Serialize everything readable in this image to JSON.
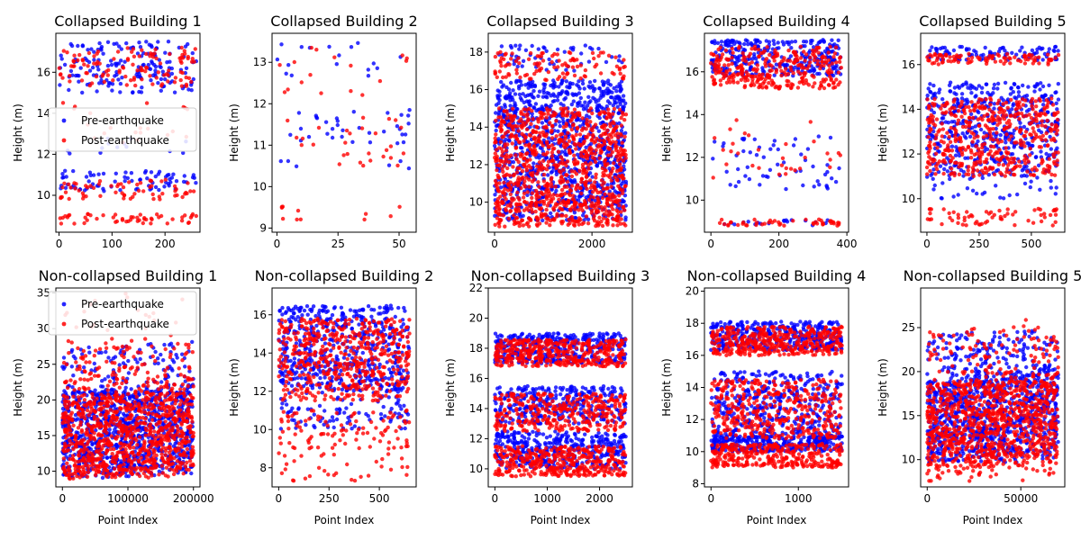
{
  "chart_data": [
    {
      "type": "scatter",
      "title": "Collapsed Building 1",
      "xlabel": "",
      "ylabel": "Height (m)",
      "xlim": [
        -6,
        266
      ],
      "ylim": [
        8.2,
        17.9
      ],
      "xticks": [
        0,
        100,
        200
      ],
      "yticks": [
        10,
        12,
        14,
        16
      ],
      "xtick_labels": [
        "0",
        "100",
        "200"
      ],
      "ytick_labels": [
        "10",
        "12",
        "14",
        "16"
      ],
      "n": 260,
      "legend": {
        "placement": "center-left",
        "entries": [
          "Pre-earthquake",
          "Post-earthquake"
        ]
      },
      "series": [
        {
          "name": "Pre-earthquake",
          "color": "#0000ff",
          "bands": [
            [
              15.6,
              17.5,
              0.45
            ],
            [
              10.2,
              11.2,
              0.3
            ],
            [
              12.0,
              12.8,
              0.05
            ],
            [
              15.0,
              16.0,
              0.2
            ]
          ]
        },
        {
          "name": "Post-earthquake",
          "color": "#ff0000",
          "bands": [
            [
              15.3,
              17.2,
              0.45
            ],
            [
              9.8,
              10.8,
              0.25
            ],
            [
              8.6,
              9.1,
              0.2
            ],
            [
              12.5,
              13.5,
              0.05
            ],
            [
              14.0,
              14.6,
              0.03
            ]
          ]
        }
      ]
    },
    {
      "type": "scatter",
      "title": "Collapsed Building 2",
      "xlabel": "",
      "ylabel": "Height (m)",
      "xlim": [
        -2,
        57
      ],
      "ylim": [
        8.9,
        13.7
      ],
      "xticks": [
        0,
        25,
        50
      ],
      "yticks": [
        9,
        10,
        11,
        12,
        13
      ],
      "xtick_labels": [
        "0",
        "25",
        "50"
      ],
      "ytick_labels": [
        "9",
        "10",
        "11",
        "12",
        "13"
      ],
      "n": 56,
      "legend": null,
      "series": [
        {
          "name": "Pre-earthquake",
          "color": "#0000ff",
          "bands": [
            [
              12.6,
              13.5,
              0.3
            ],
            [
              11.0,
              11.9,
              0.6
            ],
            [
              10.3,
              10.9,
              0.1
            ]
          ]
        },
        {
          "name": "Post-earthquake",
          "color": "#ff0000",
          "bands": [
            [
              12.2,
              13.4,
              0.3
            ],
            [
              10.5,
              11.7,
              0.5
            ],
            [
              9.2,
              9.6,
              0.2
            ]
          ]
        }
      ]
    },
    {
      "type": "scatter",
      "title": "Collapsed Building 3",
      "xlabel": "",
      "ylabel": "Height (m)",
      "xlim": [
        -130,
        2830
      ],
      "ylim": [
        8.4,
        19.0
      ],
      "xticks": [
        0,
        2000
      ],
      "yticks": [
        10,
        12,
        14,
        16,
        18
      ],
      "xtick_labels": [
        "0",
        "2000"
      ],
      "ytick_labels": [
        "10",
        "12",
        "14",
        "16",
        "18"
      ],
      "n": 2700,
      "legend": null,
      "series": [
        {
          "name": "Pre-earthquake",
          "color": "#0000ff",
          "bands": [
            [
              10.0,
              16.5,
              0.85
            ],
            [
              17.0,
              18.4,
              0.05
            ],
            [
              9.0,
              10.0,
              0.1
            ]
          ]
        },
        {
          "name": "Post-earthquake",
          "color": "#ff0000",
          "bands": [
            [
              9.8,
              15.0,
              0.7
            ],
            [
              8.7,
              10.0,
              0.2
            ],
            [
              16.5,
              18.0,
              0.1
            ]
          ]
        }
      ]
    },
    {
      "type": "scatter",
      "title": "Collapsed Building 4",
      "xlabel": "",
      "ylabel": "Height (m)",
      "xlim": [
        -19,
        405
      ],
      "ylim": [
        8.5,
        17.8
      ],
      "xticks": [
        0,
        200,
        400
      ],
      "yticks": [
        10,
        12,
        14,
        16
      ],
      "xtick_labels": [
        "0",
        "200",
        "400"
      ],
      "ytick_labels": [
        "10",
        "12",
        "14",
        "16"
      ],
      "n": 385,
      "legend": null,
      "series": [
        {
          "name": "Pre-earthquake",
          "color": "#0000ff",
          "bands": [
            [
              15.8,
              17.5,
              0.8
            ],
            [
              10.5,
              13.0,
              0.15
            ],
            [
              8.8,
              9.1,
              0.05
            ]
          ]
        },
        {
          "name": "Post-earthquake",
          "color": "#ff0000",
          "bands": [
            [
              15.2,
              17.2,
              0.8
            ],
            [
              8.8,
              9.1,
              0.12
            ],
            [
              11.0,
              13.8,
              0.08
            ]
          ]
        }
      ]
    },
    {
      "type": "scatter",
      "title": "Collapsed Building 5",
      "xlabel": "",
      "ylabel": "Height (m)",
      "xlim": [
        -30,
        660
      ],
      "ylim": [
        8.5,
        17.4
      ],
      "xticks": [
        0,
        250,
        500
      ],
      "yticks": [
        10,
        12,
        14,
        16
      ],
      "xtick_labels": [
        "0",
        "250",
        "500"
      ],
      "ytick_labels": [
        "10",
        "12",
        "14",
        "16"
      ],
      "n": 630,
      "legend": null,
      "series": [
        {
          "name": "Pre-earthquake",
          "color": "#0000ff",
          "bands": [
            [
              11.0,
              15.2,
              0.8
            ],
            [
              16.2,
              16.8,
              0.15
            ],
            [
              10.0,
              11.0,
              0.05
            ]
          ]
        },
        {
          "name": "Post-earthquake",
          "color": "#ff0000",
          "bands": [
            [
              11.0,
              14.5,
              0.75
            ],
            [
              8.8,
              9.6,
              0.1
            ],
            [
              16.0,
              16.5,
              0.15
            ]
          ]
        }
      ]
    },
    {
      "type": "scatter",
      "title": "Non-collapsed Building 1",
      "xlabel": "Point Index",
      "ylabel": "Height (m)",
      "xlim": [
        -10000,
        210000
      ],
      "ylim": [
        7.8,
        35.7
      ],
      "xticks": [
        0,
        100000,
        200000
      ],
      "yticks": [
        10,
        15,
        20,
        25,
        30,
        35
      ],
      "xtick_labels": [
        "0",
        "100000",
        "200000"
      ],
      "ytick_labels": [
        "10",
        "15",
        "20",
        "25",
        "30",
        "35"
      ],
      "n": 200000,
      "legend": {
        "placement": "top-left",
        "entries": [
          "Pre-earthquake",
          "Post-earthquake"
        ]
      },
      "series": [
        {
          "name": "Pre-earthquake",
          "color": "#0000ff",
          "bands": [
            [
              9.0,
              21.0,
              0.9
            ],
            [
              21.0,
              27.0,
              0.1
            ]
          ]
        },
        {
          "name": "Post-earthquake",
          "color": "#ff0000",
          "bands": [
            [
              8.8,
              20.5,
              0.85
            ],
            [
              20.5,
              27.5,
              0.13
            ],
            [
              28.0,
              34.0,
              0.02
            ]
          ]
        }
      ]
    },
    {
      "type": "scatter",
      "title": "Non-collapsed Building 2",
      "xlabel": "Point Index",
      "ylabel": "Height (m)",
      "xlim": [
        -33,
        683
      ],
      "ylim": [
        7.0,
        17.4
      ],
      "xticks": [
        0,
        250,
        500
      ],
      "yticks": [
        8,
        10,
        12,
        14,
        16
      ],
      "xtick_labels": [
        "0",
        "250",
        "500"
      ],
      "ytick_labels": [
        "8",
        "10",
        "12",
        "14",
        "16"
      ],
      "n": 650,
      "legend": null,
      "series": [
        {
          "name": "Pre-earthquake",
          "color": "#0000ff",
          "bands": [
            [
              12.0,
              16.5,
              0.85
            ],
            [
              10.0,
              12.0,
              0.15
            ]
          ]
        },
        {
          "name": "Post-earthquake",
          "color": "#ff0000",
          "bands": [
            [
              11.5,
              15.8,
              0.8
            ],
            [
              9.0,
              11.0,
              0.15
            ],
            [
              7.3,
              8.8,
              0.05
            ]
          ]
        }
      ]
    },
    {
      "type": "scatter",
      "title": "Non-collapsed Building 3",
      "xlabel": "Point Index",
      "ylabel": "Height (m)",
      "xlim": [
        -127,
        2627
      ],
      "ylim": [
        8.8,
        22.0
      ],
      "xticks": [
        0,
        1000,
        2000
      ],
      "yticks": [
        10,
        12,
        14,
        16,
        18,
        20,
        22
      ],
      "xtick_labels": [
        "0",
        "1000",
        "2000"
      ],
      "ytick_labels": [
        "10",
        "12",
        "14",
        "16",
        "18",
        "20",
        "22"
      ],
      "n": 2500,
      "legend": null,
      "series": [
        {
          "name": "Pre-earthquake",
          "color": "#0000ff",
          "bands": [
            [
              17.0,
              19.0,
              0.35
            ],
            [
              10.0,
              12.5,
              0.35
            ],
            [
              13.0,
              15.5,
              0.3
            ]
          ]
        },
        {
          "name": "Post-earthquake",
          "color": "#ff0000",
          "bands": [
            [
              16.8,
              18.6,
              0.35
            ],
            [
              9.5,
              11.5,
              0.35
            ],
            [
              12.5,
              15.0,
              0.3
            ]
          ]
        }
      ]
    },
    {
      "type": "scatter",
      "title": "Non-collapsed Building 4",
      "xlabel": "Point Index",
      "ylabel": "Height (m)",
      "xlim": [
        -75,
        1575
      ],
      "ylim": [
        7.8,
        20.2
      ],
      "xticks": [
        0,
        1000
      ],
      "yticks": [
        8,
        10,
        12,
        14,
        16,
        18,
        20
      ],
      "xtick_labels": [
        "0",
        "1000"
      ],
      "ytick_labels": [
        "8",
        "10",
        "12",
        "14",
        "16",
        "18",
        "20"
      ],
      "n": 1500,
      "legend": null,
      "series": [
        {
          "name": "Pre-earthquake",
          "color": "#0000ff",
          "bands": [
            [
              16.3,
              18.1,
              0.35
            ],
            [
              10.0,
              11.0,
              0.3
            ],
            [
              11.0,
              15.0,
              0.35
            ]
          ]
        },
        {
          "name": "Post-earthquake",
          "color": "#ff0000",
          "bands": [
            [
              16.0,
              17.8,
              0.35
            ],
            [
              9.0,
              10.5,
              0.3
            ],
            [
              10.8,
              14.5,
              0.35
            ]
          ]
        }
      ]
    },
    {
      "type": "scatter",
      "title": "Non-collapsed Building 5",
      "xlabel": "Point Index",
      "ylabel": "Height (m)",
      "xlim": [
        -3500,
        73500
      ],
      "ylim": [
        6.9,
        29.5
      ],
      "xticks": [
        0,
        50000
      ],
      "yticks": [
        10,
        15,
        20,
        25
      ],
      "xtick_labels": [
        "0",
        "50000"
      ],
      "ytick_labels": [
        "10",
        "15",
        "20",
        "25"
      ],
      "n": 70000,
      "legend": null,
      "series": [
        {
          "name": "Pre-earthquake",
          "color": "#0000ff",
          "bands": [
            [
              9.5,
              19.0,
              0.85
            ],
            [
              19.0,
              24.0,
              0.15
            ]
          ]
        },
        {
          "name": "Post-earthquake",
          "color": "#ff0000",
          "bands": [
            [
              9.0,
              18.5,
              0.85
            ],
            [
              7.5,
              9.0,
              0.05
            ],
            [
              19.0,
              24.5,
              0.1
            ]
          ]
        }
      ]
    }
  ]
}
